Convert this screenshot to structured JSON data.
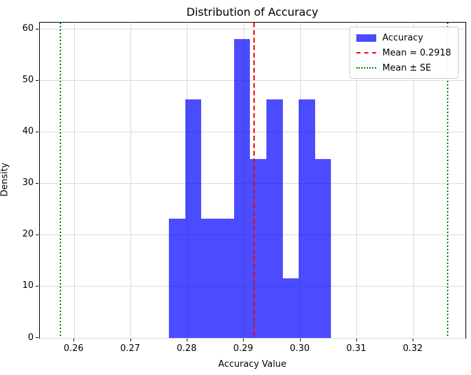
{
  "chart_data": {
    "type": "bar",
    "subtype": "histogram",
    "title": "Distribution of Accuracy",
    "xlabel": "Accuracy Value",
    "ylabel": "Density",
    "xlim": [
      0.2539,
      0.3292
    ],
    "ylim": [
      0,
      61.3
    ],
    "grid": true,
    "grid_color": "#d9d9d9",
    "xticks": {
      "values": [
        0.26,
        0.27,
        0.28,
        0.29,
        0.3,
        0.31,
        0.32
      ],
      "labels": [
        "0.26",
        "0.27",
        "0.28",
        "0.29",
        "0.30",
        "0.31",
        "0.32"
      ]
    },
    "yticks": {
      "values": [
        0,
        10,
        20,
        30,
        40,
        50,
        60
      ],
      "labels": [
        "0",
        "10",
        "20",
        "30",
        "40",
        "50",
        "60"
      ]
    },
    "histogram": {
      "series_name": "Accuracy",
      "bar_color": "#0000ff",
      "bar_alpha": 0.7,
      "bin_left_edge": 0.27673,
      "bin_width": 0.002872,
      "densities": [
        23.2,
        46.4,
        23.2,
        23.2,
        58.1,
        34.8,
        46.4,
        11.6,
        46.4,
        34.8
      ]
    },
    "mean_line": {
      "value": 0.2918,
      "color": "#ff0000",
      "style": "dashed"
    },
    "se_lines": {
      "values": [
        0.2575,
        0.326
      ],
      "color": "#008000",
      "style": "dotted"
    },
    "legend": {
      "position": "upper-right",
      "entries": [
        {
          "label": "Accuracy",
          "handle": "patch",
          "color": "rgba(0,0,255,0.7)"
        },
        {
          "label": "Mean = 0.2918",
          "handle": "dashed-line",
          "color": "#ff0000"
        },
        {
          "label": "Mean ± SE",
          "handle": "dotted-line",
          "color": "#008000"
        }
      ]
    }
  }
}
